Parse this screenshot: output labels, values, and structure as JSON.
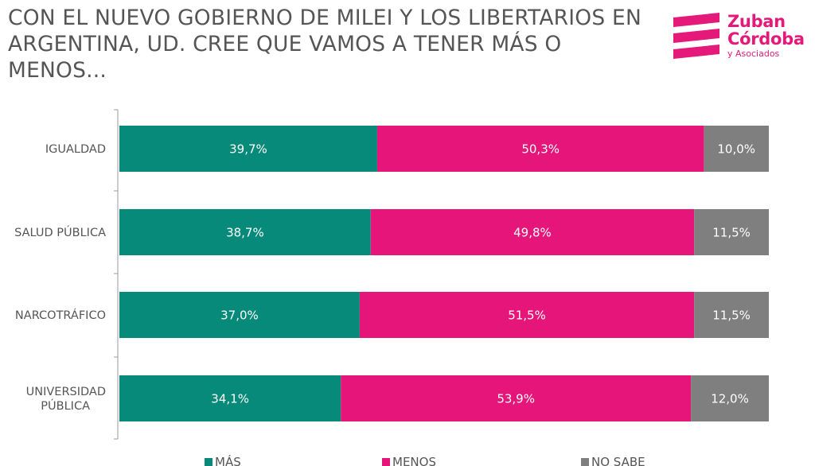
{
  "title": "CON EL NUEVO GOBIERNO DE MILEI Y LOS LIBERTARIOS EN ARGENTINA, UD. CREE QUE VAMOS A TENER MÁS O MENOS...",
  "logo": {
    "line1": "Zuban",
    "line2": "Córdoba",
    "line3": "y Asociados",
    "color": "#e5197a"
  },
  "chart_data": {
    "type": "bar",
    "orientation": "horizontal",
    "stacked": true,
    "categories": [
      "IGUALDAD",
      "SALUD PÚBLICA",
      "NARCOTRÁFICO",
      "UNIVERSIDAD PÚBLICA"
    ],
    "series": [
      {
        "name": "MÁS",
        "color": "#078a7a",
        "values": [
          39.7,
          38.7,
          37.0,
          34.1
        ],
        "labels": [
          "39,7%",
          "38,7%",
          "37,0%",
          "34,1%"
        ]
      },
      {
        "name": "MENOS",
        "color": "#e5157a",
        "values": [
          50.3,
          49.8,
          51.5,
          53.9
        ],
        "labels": [
          "50,3%",
          "49,8%",
          "51,5%",
          "53,9%"
        ]
      },
      {
        "name": "NO SABE",
        "color": "#7f7f7f",
        "values": [
          10.0,
          11.5,
          11.5,
          12.0
        ],
        "labels": [
          "10,0%",
          "11,5%",
          "11,5%",
          "12,0%"
        ]
      }
    ],
    "xlim": [
      0,
      100
    ],
    "grid": false,
    "legend_position": "bottom"
  }
}
